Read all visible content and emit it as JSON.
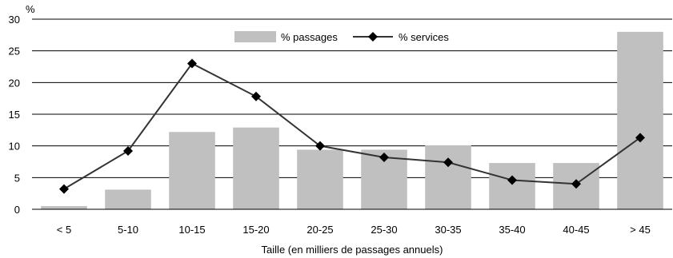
{
  "chart_data": {
    "type": "bar",
    "categories": [
      "< 5",
      "5-10",
      "10-15",
      "15-20",
      "20-25",
      "25-30",
      "30-35",
      "35-40",
      "40-45",
      "> 45"
    ],
    "series": [
      {
        "name": "% passages",
        "type": "bar",
        "color": "#c0c0c0",
        "values": [
          0.5,
          3.1,
          12.2,
          12.9,
          9.4,
          9.4,
          10.1,
          7.3,
          7.3,
          28.0
        ]
      },
      {
        "name": "% services",
        "type": "line",
        "color": "#333333",
        "marker": "diamond",
        "values": [
          3.2,
          9.2,
          23.0,
          17.8,
          10.0,
          8.2,
          7.4,
          4.6,
          4.0,
          11.3
        ]
      }
    ],
    "y_unit": "%",
    "xlabel": "Taille (en milliers de passages annuels)",
    "ylim": [
      0,
      30
    ],
    "yticks": [
      "0",
      "5",
      "10",
      "15",
      "20",
      "25",
      "30"
    ],
    "grid": "horizontal",
    "legend_position": "top-center"
  }
}
